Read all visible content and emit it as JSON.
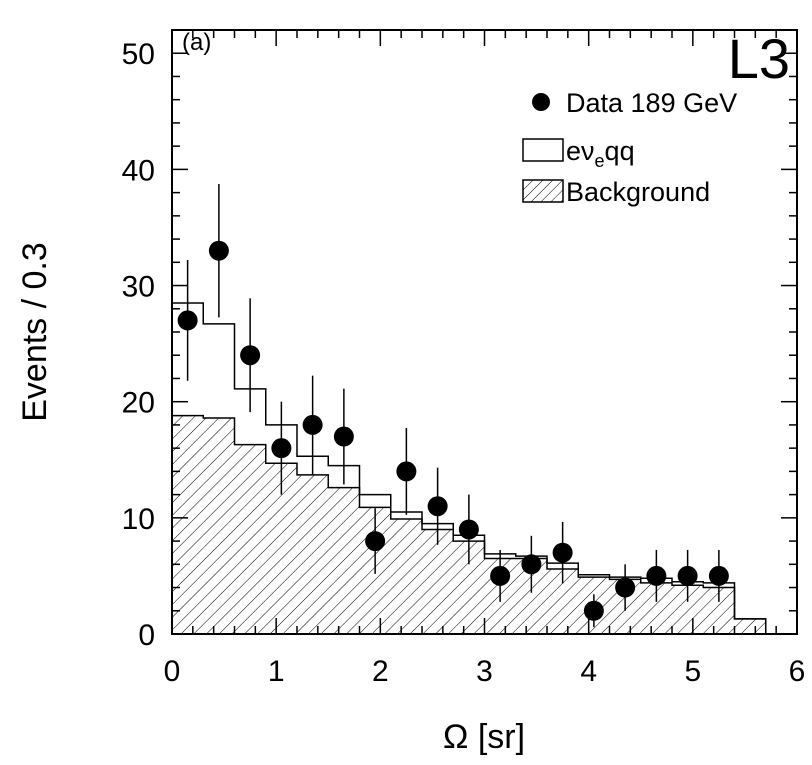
{
  "chart_data": {
    "type": "histogram",
    "panel_label": "(a)",
    "experiment_label": "L3",
    "xlabel": "Ω  [sr]",
    "ylabel": "Events / 0.3",
    "xlim": [
      0,
      6
    ],
    "ylim": [
      0,
      52
    ],
    "x_ticks": [
      0,
      1,
      2,
      3,
      4,
      5,
      6
    ],
    "x_tick_labels": [
      "0",
      "1",
      "2",
      "3",
      "4",
      "5",
      "6"
    ],
    "y_ticks": [
      0,
      10,
      20,
      30,
      40,
      50
    ],
    "y_tick_labels": [
      "0",
      "10",
      "20",
      "30",
      "40",
      "50"
    ],
    "bin_edges": [
      0,
      0.3,
      0.6,
      0.9,
      1.2,
      1.5,
      1.8,
      2.1,
      2.4,
      2.7,
      3.0,
      3.3,
      3.6,
      3.9,
      4.2,
      4.5,
      4.8,
      5.1,
      5.4,
      5.7
    ],
    "legend": {
      "position": "top-right",
      "data_label": "Data 189 GeV",
      "signal_label_main": "eν",
      "signal_label_sub": "e",
      "signal_label_tail": "qq",
      "background_label": "Background"
    },
    "series": [
      {
        "name": "Background",
        "style": "hatched",
        "values": [
          18.8,
          18.6,
          16.3,
          14.7,
          13.7,
          12.6,
          10.9,
          9.9,
          9.0,
          8.0,
          6.5,
          6.5,
          5.6,
          4.9,
          4.7,
          4.4,
          4.2,
          4.0,
          1.3
        ]
      },
      {
        "name": "eνeqq",
        "style": "stacked-outline",
        "values": [
          28.5,
          26.7,
          21.1,
          18.0,
          15.3,
          14.5,
          12.0,
          10.5,
          9.5,
          8.5,
          6.9,
          6.7,
          6.1,
          5.1,
          4.9,
          4.8,
          4.5,
          4.4,
          1.3
        ]
      },
      {
        "name": "Data 189 GeV",
        "style": "points",
        "x": [
          0.15,
          0.45,
          0.75,
          1.05,
          1.35,
          1.65,
          1.95,
          2.25,
          2.55,
          2.85,
          3.15,
          3.45,
          3.75,
          4.05,
          4.35,
          4.65,
          4.95,
          5.25
        ],
        "y": [
          27,
          33,
          24,
          16,
          18,
          17,
          8,
          14,
          11,
          9,
          5,
          6,
          7,
          2,
          4,
          5,
          5,
          5
        ]
      }
    ]
  },
  "colors": {
    "ink": "#000000",
    "background": "#ffffff"
  }
}
